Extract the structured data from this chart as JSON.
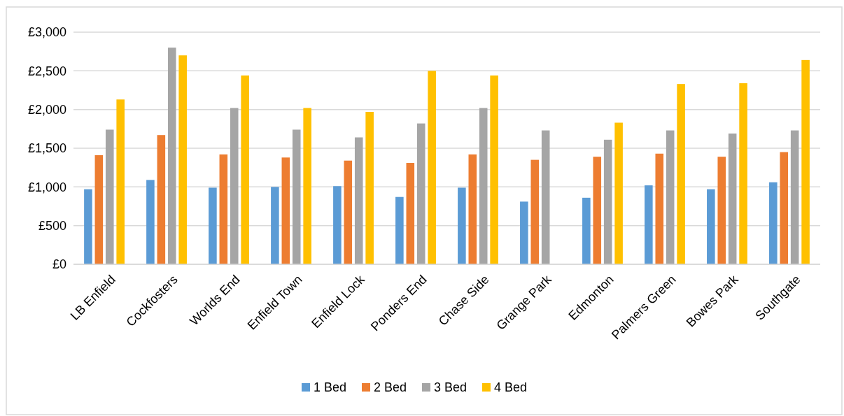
{
  "chart_data": {
    "type": "bar",
    "categories": [
      "LB Enfield",
      "Cockfosters",
      "Worlds End",
      "Enfield Town",
      "Enfield Lock",
      "Ponders End",
      "Chase Side",
      "Grange Park",
      "Edmonton",
      "Palmers Green",
      "Bowes Park",
      "Southgate"
    ],
    "series": [
      {
        "name": "1 Bed",
        "color": "#5b9bd5",
        "values": [
          970,
          1090,
          990,
          1000,
          1010,
          870,
          990,
          810,
          860,
          1020,
          970,
          1060
        ]
      },
      {
        "name": "2 Bed",
        "color": "#ed7d31",
        "values": [
          1410,
          1670,
          1420,
          1380,
          1340,
          1310,
          1420,
          1350,
          1390,
          1430,
          1390,
          1450
        ]
      },
      {
        "name": "3 Bed",
        "color": "#a5a5a5",
        "values": [
          1740,
          2800,
          2020,
          1740,
          1640,
          1820,
          2020,
          1730,
          1610,
          1730,
          1690,
          1730
        ]
      },
      {
        "name": "4 Bed",
        "color": "#ffc000",
        "values": [
          2130,
          2700,
          2440,
          2020,
          1970,
          2500,
          2440,
          null,
          1830,
          2330,
          2340,
          2640
        ]
      }
    ],
    "ylim": [
      0,
      3000
    ],
    "yticks": [
      {
        "value": 0,
        "label": "£0"
      },
      {
        "value": 500,
        "label": "£500"
      },
      {
        "value": 1000,
        "label": "£1,000"
      },
      {
        "value": 1500,
        "label": "£1,500"
      },
      {
        "value": 2000,
        "label": "£2,000"
      },
      {
        "value": 2500,
        "label": "£2,500"
      },
      {
        "value": 3000,
        "label": "£3,000"
      }
    ],
    "grid": "y",
    "legend": "bottom"
  }
}
